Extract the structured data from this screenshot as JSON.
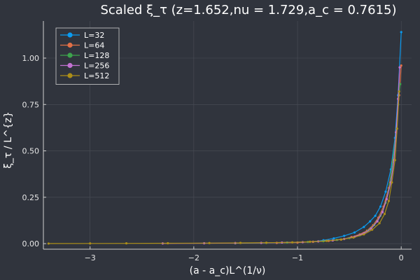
{
  "chart_data": {
    "type": "line",
    "title": "Scaled ξ_τ (z=1.652,nu = 1.729,a_c = 0.7615)",
    "xlabel": "(a - a_c)L^(1/ν)",
    "ylabel": "ξ_τ / L^{z}",
    "xlim": [
      -3.45,
      0.1
    ],
    "ylim": [
      -0.03,
      1.2
    ],
    "xticks": [
      -3,
      -2,
      -1,
      0
    ],
    "xtick_labels": [
      "−3",
      "−2",
      "−1",
      "0"
    ],
    "yticks": [
      0,
      0.25,
      0.5,
      0.75,
      1.0
    ],
    "ytick_labels": [
      "0.00",
      "0.25",
      "0.50",
      "0.75",
      "1.00"
    ],
    "grid": true,
    "legend_position": "top-left",
    "series": [
      {
        "name": "L=32",
        "color": "#0a9bf0",
        "x": [
          -0.85,
          -0.75,
          -0.65,
          -0.55,
          -0.45,
          -0.36,
          -0.3,
          -0.25,
          -0.2,
          -0.15,
          -0.1,
          -0.06,
          -0.03,
          0.0
        ],
        "y": [
          0.01,
          0.018,
          0.028,
          0.042,
          0.06,
          0.09,
          0.12,
          0.15,
          0.2,
          0.28,
          0.4,
          0.57,
          0.8,
          1.14
        ]
      },
      {
        "name": "L=64",
        "color": "#e26f46",
        "x": [
          -1.2,
          -1.0,
          -0.85,
          -0.7,
          -0.58,
          -0.48,
          -0.4,
          -0.33,
          -0.27,
          -0.22,
          -0.17,
          -0.12,
          -0.08,
          -0.05,
          -0.02,
          0.0
        ],
        "y": [
          0.004,
          0.006,
          0.01,
          0.015,
          0.022,
          0.035,
          0.05,
          0.07,
          0.1,
          0.14,
          0.2,
          0.3,
          0.44,
          0.6,
          0.8,
          0.96
        ]
      },
      {
        "name": "L=128",
        "color": "#3da44d",
        "x": [
          -1.6,
          -1.3,
          -1.1,
          -0.9,
          -0.75,
          -0.62,
          -0.5,
          -0.4,
          -0.32,
          -0.26,
          -0.2,
          -0.15,
          -0.11,
          -0.08,
          -0.05,
          -0.03,
          -0.01
        ],
        "y": [
          0.002,
          0.004,
          0.006,
          0.009,
          0.013,
          0.02,
          0.03,
          0.045,
          0.07,
          0.1,
          0.15,
          0.22,
          0.32,
          0.45,
          0.6,
          0.75,
          0.86
        ]
      },
      {
        "name": "L=256",
        "color": "#c271d2",
        "x": [
          -2.3,
          -1.9,
          -1.6,
          -1.35,
          -1.15,
          -0.95,
          -0.8,
          -0.66,
          -0.55,
          -0.45,
          -0.36,
          -0.29,
          -0.23,
          -0.18,
          -0.14,
          -0.1,
          -0.07,
          -0.05,
          -0.03,
          -0.015
        ],
        "y": [
          0.001,
          0.002,
          0.003,
          0.004,
          0.006,
          0.008,
          0.012,
          0.017,
          0.025,
          0.037,
          0.055,
          0.08,
          0.12,
          0.17,
          0.24,
          0.33,
          0.45,
          0.6,
          0.78,
          0.95
        ]
      },
      {
        "name": "L=512",
        "color": "#ac8e18",
        "x": [
          -3.4,
          -3.0,
          -2.65,
          -2.25,
          -1.85,
          -1.55,
          -1.3,
          -1.05,
          -0.88,
          -0.72,
          -0.58,
          -0.46,
          -0.36,
          -0.28,
          -0.21,
          -0.16,
          -0.12,
          -0.09,
          -0.06,
          -0.04,
          -0.02
        ],
        "y": [
          0.0005,
          0.001,
          0.0015,
          0.002,
          0.003,
          0.004,
          0.005,
          0.007,
          0.01,
          0.015,
          0.022,
          0.033,
          0.05,
          0.075,
          0.11,
          0.16,
          0.23,
          0.33,
          0.45,
          0.62,
          0.82
        ]
      }
    ]
  }
}
